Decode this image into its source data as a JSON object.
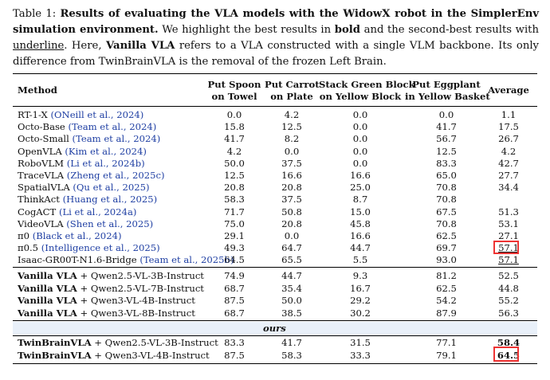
{
  "caption": {
    "label": "Table 1:",
    "title": "Results of evaluating the VLA models with the WidowX robot in the SimplerEnv simulation environment.",
    "s1": "We highlight the best results in",
    "bold_word": "bold",
    "s2": "and the second-best results with",
    "underline_word": "underline",
    "s3": ". Here,",
    "vanilla": "Vanilla VLA",
    "s4": "refers to a VLA constructed with a single VLM backbone. Its only difference from TwinBrainVLA is the removal of the frozen Left Brain."
  },
  "headers": {
    "method": "Method",
    "c1a": "Put Spoon",
    "c1b": "on Towel",
    "c2a": "Put Carrot",
    "c2b": "on Plate",
    "c3a": "Stack Green Block",
    "c3b": "on Yellow Block",
    "c4a": "Put Eggplant",
    "c4b": "in Yellow Basket",
    "c5a": "Average"
  },
  "ours_label": "ours",
  "rows": [
    {
      "name": "RT-1-X",
      "cite": "(ONeill et al., 2024)",
      "v": [
        "0.0",
        "4.2",
        "0.0",
        "0.0",
        "1.1"
      ]
    },
    {
      "name": "Octo-Base",
      "cite": "(Team et al., 2024)",
      "v": [
        "15.8",
        "12.5",
        "0.0",
        "41.7",
        "17.5"
      ]
    },
    {
      "name": "Octo-Small",
      "cite": "(Team et al., 2024)",
      "v": [
        "41.7",
        "8.2",
        "0.0",
        "56.7",
        "26.7"
      ]
    },
    {
      "name": "OpenVLA",
      "cite": "(Kim et al., 2024)",
      "v": [
        "4.2",
        "0.0",
        "0.0",
        "12.5",
        "4.2"
      ]
    },
    {
      "name": "RoboVLM",
      "cite": "(Li et al., 2024b)",
      "v": [
        "50.0",
        "37.5",
        "0.0",
        "83.3",
        "42.7"
      ]
    },
    {
      "name": "TraceVLA",
      "cite": "(Zheng et al., 2025c)",
      "v": [
        "12.5",
        "16.6",
        "16.6",
        "65.0",
        "27.7"
      ]
    },
    {
      "name": "SpatialVLA",
      "cite": "(Qu et al., 2025)",
      "v": [
        "20.8",
        "20.8",
        "25.0",
        "70.8",
        "34.4"
      ]
    },
    {
      "name": "ThinkAct",
      "cite": "(Huang et al., 2025)",
      "v": [
        "58.3",
        "37.5",
        "8.7",
        "70.8",
        ""
      ]
    },
    {
      "name": "CogACT",
      "cite": "(Li et al., 2024a)",
      "v": [
        "71.7",
        "50.8",
        "15.0",
        "67.5",
        "51.3"
      ]
    },
    {
      "name": "VideoVLA",
      "cite": "(Shen et al., 2025)",
      "v": [
        "75.0",
        "20.8",
        "45.8",
        "70.8",
        "53.1"
      ]
    },
    {
      "name": "π0",
      "cite": "(Black et al., 2024)",
      "v": [
        "29.1",
        "0.0",
        "16.6",
        "62.5",
        "27.1"
      ]
    },
    {
      "name": "π0.5",
      "cite": "(Intelligence et al., 2025)",
      "v": [
        "49.3",
        "64.7",
        "44.7",
        "69.7",
        "57.1"
      ]
    },
    {
      "name": "Isaac-GR00T-N1.6-Bridge",
      "cite": "(Team et al., 2025b)",
      "v": [
        "64.5",
        "65.5",
        "5.5",
        "93.0",
        "57.1"
      ]
    }
  ],
  "vanilla_rows": [
    {
      "name": "Vanilla VLA",
      "suffix": "+ Qwen2.5-VL-3B-Instruct",
      "v": [
        "74.9",
        "44.7",
        "9.3",
        "81.2",
        "52.5"
      ]
    },
    {
      "name": "Vanilla VLA",
      "suffix": "+ Qwen2.5-VL-7B-Instruct",
      "v": [
        "68.7",
        "35.4",
        "16.7",
        "62.5",
        "44.8"
      ]
    },
    {
      "name": "Vanilla VLA",
      "suffix": "+ Qwen3-VL-4B-Instruct",
      "v": [
        "87.5",
        "50.0",
        "29.2",
        "54.2",
        "55.2"
      ]
    },
    {
      "name": "Vanilla VLA",
      "suffix": "+ Qwen3-VL-8B-Instruct",
      "v": [
        "68.7",
        "38.5",
        "30.2",
        "87.9",
        "56.3"
      ]
    }
  ],
  "ours_rows": [
    {
      "name": "TwinBrainVLA",
      "suffix": "+ Qwen2.5-VL-3B-Instruct",
      "v": [
        "83.3",
        "41.7",
        "31.5",
        "77.1",
        "58.4"
      ]
    },
    {
      "name": "TwinBrainVLA",
      "suffix": "+ Qwen3-VL-4B-Instruct",
      "v": [
        "87.5",
        "58.3",
        "33.3",
        "79.1",
        "64.5"
      ]
    }
  ],
  "colors": {
    "citation": "#1f3fa3",
    "ours_band": "#e9f0f9",
    "highlight_box": "#e33333"
  }
}
